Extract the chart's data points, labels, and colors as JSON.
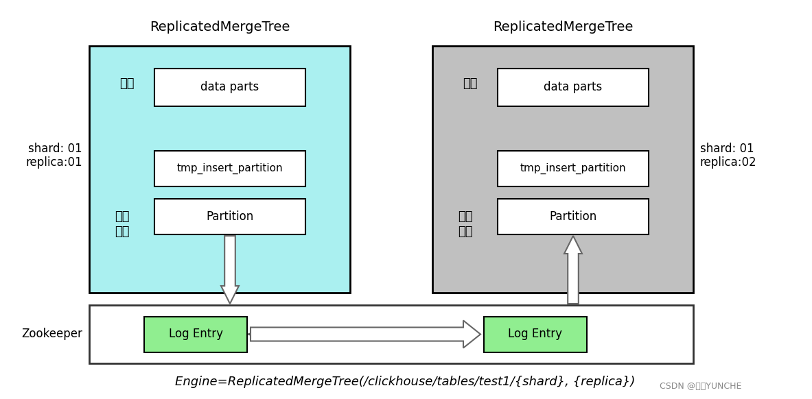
{
  "bg_color": "#ffffff",
  "title_left": "ReplicatedMergeTree",
  "title_right": "ReplicatedMergeTree",
  "left_box_color": "#aaf0f0",
  "right_box_color": "#c0c0c0",
  "white_box_color": "#ffffff",
  "green_box_color": "#90ee90",
  "shard_left": "shard: 01\nreplica:01",
  "shard_right": "shard: 01\nreplica:02",
  "label_memory": "内存",
  "label_fs": "文件\n系统",
  "label_data_parts": "data parts",
  "label_tmp": "tmp_insert_partition",
  "label_partition": "Partition",
  "label_log_entry": "Log Entry",
  "label_zookeeper": "Zookeeper",
  "bottom_text": "Engine=ReplicatedMergeTree(/clickhouse/tables/test1/{shard}, {replica})",
  "watermark": "CSDN @云裂YUNCHE",
  "fig_width": 11.83,
  "fig_height": 5.82
}
